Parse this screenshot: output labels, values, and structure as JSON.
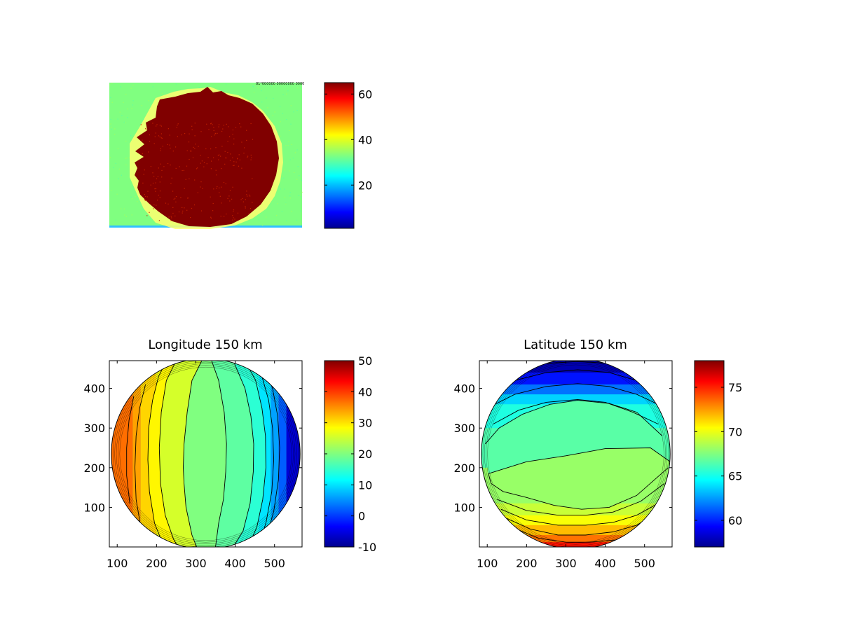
{
  "chart_data": [
    {
      "type": "heatmap",
      "title": "",
      "description_source": "camera image",
      "stamp_text": "01*000000 00000000 0000",
      "colorbar": {
        "colormap": "jet",
        "range": [
          1,
          65
        ],
        "ticks": [
          20,
          40,
          60
        ]
      },
      "colors": {
        "background": "#80ff80",
        "disc": "#800000",
        "noise": "#c01000"
      }
    },
    {
      "type": "heatmap",
      "title": "Longitude 150 km",
      "xlim": [
        80,
        570
      ],
      "ylim": [
        0,
        470
      ],
      "xticks": [
        100,
        200,
        300,
        400,
        500
      ],
      "yticks": [
        100,
        200,
        300,
        400
      ],
      "disc": {
        "cx": 325,
        "cy": 235,
        "r": 240
      },
      "contour_bands": [
        {
          "lo": 20,
          "hi": 22.5,
          "poly": [
            [
              295,
              0
            ],
            [
              345,
              0
            ],
            [
              302,
              0
            ],
            [
              290,
              30
            ],
            [
              275,
              100
            ],
            [
              270,
              160
            ],
            [
              268,
              200
            ],
            [
              270,
              260
            ],
            [
              278,
              340
            ],
            [
              290,
              420
            ],
            [
              300,
              470
            ],
            [
              320,
              470
            ],
            [
              345,
              470
            ],
            [
              360,
              410
            ],
            [
              370,
              340
            ],
            [
              375,
              260
            ],
            [
              373,
              190
            ],
            [
              367,
              120
            ],
            [
              355,
              60
            ],
            [
              345,
              0
            ]
          ]
        },
        {
          "lo": 17.5,
          "hi": 20,
          "poly": [
            [
              360,
              0
            ],
            [
              375,
              25
            ],
            [
              395,
              80
            ],
            [
              410,
              150
            ],
            [
              415,
              230
            ],
            [
              412,
              310
            ],
            [
              398,
              390
            ],
            [
              370,
              460
            ],
            [
              350,
              470
            ],
            [
              330,
              470
            ],
            [
              340,
              470
            ],
            [
              358,
              420
            ],
            [
              372,
              340
            ],
            [
              378,
              260
            ],
            [
              376,
              190
            ],
            [
              370,
              120
            ],
            [
              358,
              60
            ],
            [
              350,
              0
            ]
          ]
        },
        {
          "lo": 15,
          "hi": 17.5,
          "poly": [
            [
              405,
              0
            ],
            [
              420,
              40
            ],
            [
              438,
              110
            ],
            [
              446,
              190
            ],
            [
              447,
              260
            ],
            [
              440,
              330
            ],
            [
              425,
              400
            ],
            [
              408,
              450
            ],
            [
              395,
              470
            ]
          ]
        },
        {
          "lo": 12.5,
          "hi": 15,
          "poly": [
            [
              430,
              0
            ],
            [
              455,
              50
            ],
            [
              470,
              120
            ],
            [
              478,
              200
            ],
            [
              477,
              280
            ],
            [
              468,
              350
            ],
            [
              452,
              420
            ],
            [
              432,
              470
            ]
          ]
        },
        {
          "lo": 10,
          "hi": 12.5,
          "poly": [
            [
              455,
              0
            ],
            [
              478,
              60
            ],
            [
              493,
              140
            ],
            [
              498,
              220
            ],
            [
              495,
              300
            ],
            [
              485,
              370
            ],
            [
              468,
              430
            ],
            [
              452,
              470
            ]
          ]
        },
        {
          "lo": 25,
          "hi": 27.5,
          "poly": [
            [
              290,
              0
            ],
            [
              275,
              30
            ],
            [
              262,
              90
            ],
            [
              256,
              170
            ],
            [
              256,
              250
            ],
            [
              262,
              330
            ],
            [
              275,
              410
            ],
            [
              290,
              470
            ],
            [
              285,
              470
            ],
            [
              250,
              470
            ],
            [
              225,
              420
            ],
            [
              212,
              340
            ],
            [
              207,
              250
            ],
            [
              210,
              160
            ],
            [
              222,
              80
            ],
            [
              243,
              20
            ],
            [
              255,
              0
            ]
          ]
        },
        {
          "lo": 27.5,
          "hi": 30,
          "poly": [
            [
              215,
              10
            ],
            [
              195,
              60
            ],
            [
              182,
              140
            ],
            [
              178,
              220
            ],
            [
              180,
              300
            ],
            [
              190,
              370
            ],
            [
              205,
              430
            ],
            [
              225,
              470
            ]
          ]
        },
        {
          "lo": 30,
          "hi": 32.5,
          "poly": [
            [
              160,
              50
            ],
            [
              148,
              120
            ],
            [
              145,
              200
            ],
            [
              148,
              280
            ],
            [
              157,
              350
            ],
            [
              172,
              410
            ]
          ]
        },
        {
          "lo": 32.5,
          "hi": 35,
          "poly": [
            [
              132,
              110
            ],
            [
              124,
              180
            ],
            [
              124,
              250
            ],
            [
              130,
              320
            ],
            [
              142,
              380
            ]
          ]
        }
      ],
      "contour_lines": [
        [
          [
            302,
            0
          ],
          [
            290,
            30
          ],
          [
            275,
            100
          ],
          [
            270,
            160
          ],
          [
            268,
            200
          ],
          [
            270,
            260
          ],
          [
            278,
            340
          ],
          [
            290,
            420
          ],
          [
            315,
            470
          ]
        ],
        [
          [
            350,
            0
          ],
          [
            358,
            60
          ],
          [
            370,
            120
          ],
          [
            376,
            190
          ],
          [
            378,
            260
          ],
          [
            372,
            340
          ],
          [
            358,
            420
          ],
          [
            340,
            470
          ]
        ],
        [
          [
            395,
            0
          ],
          [
            420,
            40
          ],
          [
            438,
            110
          ],
          [
            446,
            190
          ],
          [
            447,
            260
          ],
          [
            440,
            330
          ],
          [
            425,
            400
          ],
          [
            395,
            470
          ]
        ],
        [
          [
            432,
            0
          ],
          [
            455,
            50
          ],
          [
            470,
            120
          ],
          [
            478,
            200
          ],
          [
            477,
            280
          ],
          [
            468,
            350
          ],
          [
            452,
            420
          ],
          [
            425,
            470
          ]
        ],
        [
          [
            458,
            0
          ],
          [
            478,
            60
          ],
          [
            493,
            140
          ],
          [
            498,
            220
          ],
          [
            495,
            300
          ],
          [
            485,
            370
          ],
          [
            468,
            430
          ],
          [
            448,
            470
          ]
        ],
        [
          [
            478,
            20
          ],
          [
            498,
            90
          ],
          [
            510,
            170
          ],
          [
            513,
            250
          ],
          [
            508,
            330
          ],
          [
            495,
            400
          ],
          [
            475,
            455
          ]
        ],
        [
          [
            255,
            0
          ],
          [
            243,
            20
          ],
          [
            222,
            80
          ],
          [
            210,
            160
          ],
          [
            207,
            250
          ],
          [
            212,
            340
          ],
          [
            225,
            420
          ],
          [
            250,
            470
          ]
        ],
        [
          [
            215,
            10
          ],
          [
            195,
            60
          ],
          [
            182,
            140
          ],
          [
            178,
            220
          ],
          [
            180,
            300
          ],
          [
            190,
            370
          ],
          [
            205,
            430
          ],
          [
            225,
            470
          ]
        ],
        [
          [
            160,
            50
          ],
          [
            148,
            120
          ],
          [
            145,
            200
          ],
          [
            148,
            280
          ],
          [
            157,
            350
          ],
          [
            172,
            410
          ]
        ],
        [
          [
            132,
            110
          ],
          [
            124,
            180
          ],
          [
            124,
            250
          ],
          [
            130,
            320
          ],
          [
            142,
            380
          ]
        ]
      ],
      "colorbar": {
        "colormap": "jet",
        "range": [
          -10,
          50
        ],
        "ticks": [
          -10,
          0,
          10,
          20,
          30,
          40,
          50
        ]
      }
    },
    {
      "type": "heatmap",
      "title": "Latitude 150 km",
      "xlim": [
        80,
        570
      ],
      "ylim": [
        0,
        470
      ],
      "xticks": [
        100,
        200,
        300,
        400,
        500
      ],
      "yticks": [
        100,
        200,
        300,
        400
      ],
      "disc": {
        "cx": 325,
        "cy": 235,
        "r": 240
      },
      "contour_lines": [
        [
          [
            115,
            310
          ],
          [
            180,
            345
          ],
          [
            250,
            365
          ],
          [
            330,
            372
          ],
          [
            400,
            365
          ],
          [
            470,
            340
          ],
          [
            535,
            310
          ]
        ],
        [
          [
            100,
            350
          ],
          [
            170,
            385
          ],
          [
            250,
            405
          ],
          [
            330,
            412
          ],
          [
            410,
            405
          ],
          [
            480,
            385
          ],
          [
            545,
            355
          ]
        ],
        [
          [
            95,
            385
          ],
          [
            170,
            420
          ],
          [
            250,
            440
          ],
          [
            330,
            447
          ],
          [
            410,
            440
          ],
          [
            480,
            420
          ],
          [
            535,
            395
          ]
        ],
        [
          [
            110,
            420
          ],
          [
            180,
            450
          ],
          [
            250,
            463
          ],
          [
            330,
            468
          ],
          [
            410,
            463
          ],
          [
            480,
            450
          ],
          [
            520,
            430
          ]
        ],
        [
          [
            95,
            260
          ],
          [
            130,
            300
          ],
          [
            190,
            335
          ],
          [
            260,
            360
          ],
          [
            330,
            370
          ],
          [
            410,
            362
          ],
          [
            480,
            340
          ],
          [
            545,
            280
          ]
        ],
        [
          [
            103,
            185
          ],
          [
            200,
            215
          ],
          [
            300,
            230
          ],
          [
            400,
            248
          ],
          [
            515,
            250
          ],
          [
            565,
            215
          ]
        ],
        [
          [
            103,
            185
          ],
          [
            110,
            160
          ],
          [
            140,
            140
          ],
          [
            200,
            125
          ],
          [
            270,
            105
          ],
          [
            340,
            95
          ],
          [
            410,
            100
          ],
          [
            480,
            130
          ],
          [
            560,
            200
          ]
        ],
        [
          [
            125,
            120
          ],
          [
            200,
            92
          ],
          [
            280,
            80
          ],
          [
            350,
            80
          ],
          [
            420,
            88
          ],
          [
            490,
            115
          ],
          [
            550,
            160
          ]
        ],
        [
          [
            135,
            95
          ],
          [
            200,
            68
          ],
          [
            280,
            55
          ],
          [
            350,
            55
          ],
          [
            420,
            62
          ],
          [
            480,
            80
          ],
          [
            535,
            110
          ]
        ],
        [
          [
            150,
            72
          ],
          [
            210,
            45
          ],
          [
            280,
            30
          ],
          [
            350,
            30
          ],
          [
            420,
            38
          ],
          [
            480,
            55
          ],
          [
            520,
            80
          ]
        ],
        [
          [
            175,
            45
          ],
          [
            230,
            22
          ],
          [
            300,
            12
          ],
          [
            360,
            12
          ],
          [
            430,
            18
          ],
          [
            490,
            35
          ]
        ]
      ],
      "colorbar": {
        "colormap": "jet",
        "range": [
          57,
          78
        ],
        "ticks": [
          60,
          65,
          70,
          75
        ]
      }
    }
  ]
}
